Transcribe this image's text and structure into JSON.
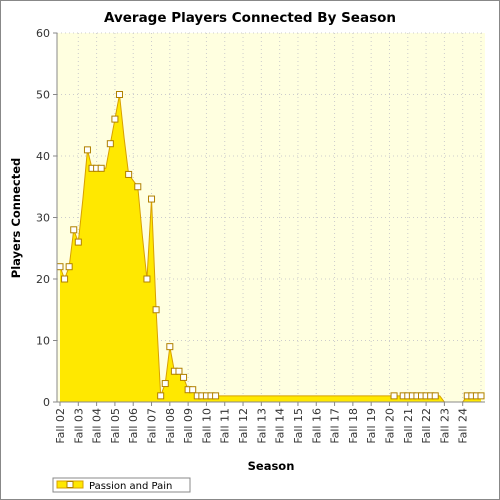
{
  "chart_data": {
    "type": "area",
    "title": "Average Players Connected By Season",
    "xlabel": "Season",
    "ylabel": "Players Connected",
    "ylim": [
      0,
      60
    ],
    "yticks": [
      0,
      10,
      20,
      30,
      40,
      50,
      60
    ],
    "x_tick_labels": [
      "Fall 02",
      "Fall 03",
      "Fall 04",
      "Fall 05",
      "Fall 06",
      "Fall 07",
      "Fall 08",
      "Fall 09",
      "Fall 10",
      "Fall 11",
      "Fall 12",
      "Fall 13",
      "Fall 14",
      "Fall 15",
      "Fall 16",
      "Fall 17",
      "Fall 18",
      "Fall 19",
      "Fall 20",
      "Fall 21",
      "Fall 22",
      "Fall 23",
      "Fall 24"
    ],
    "points_per_season": 4,
    "grid": true,
    "legend_placement": "bottom-left",
    "colors": {
      "fill": "#ffe800",
      "line": "#d8a000",
      "plot_bg": "#ffffe0",
      "marker_fill": "#ffffff"
    },
    "series": [
      {
        "name": "Passion and Pain",
        "values": [
          22,
          20,
          22,
          28,
          26,
          33,
          41,
          38,
          38,
          38,
          38,
          42,
          46,
          50,
          43,
          37,
          36,
          35,
          27,
          20,
          33,
          15,
          1,
          3,
          9,
          5,
          5,
          4,
          2,
          2,
          1,
          1,
          1,
          1,
          1,
          1,
          1,
          1,
          1,
          1,
          1,
          1,
          1,
          1,
          1,
          1,
          1,
          1,
          1,
          1,
          1,
          1,
          1,
          1,
          1,
          1,
          1,
          1,
          1,
          1,
          1,
          1,
          1,
          1,
          1,
          1,
          1,
          1,
          1,
          1,
          1,
          1,
          1,
          1,
          1,
          1,
          1,
          1,
          1,
          1,
          1,
          1,
          1,
          1,
          0,
          0,
          0,
          0,
          0,
          1,
          1,
          1,
          1
        ],
        "markers": [
          true,
          true,
          true,
          true,
          true,
          false,
          true,
          true,
          true,
          true,
          false,
          true,
          true,
          true,
          false,
          true,
          false,
          true,
          false,
          true,
          true,
          true,
          true,
          true,
          true,
          true,
          true,
          true,
          true,
          true,
          true,
          true,
          true,
          true,
          true,
          false,
          false,
          false,
          false,
          false,
          false,
          false,
          false,
          false,
          false,
          false,
          false,
          false,
          false,
          false,
          false,
          false,
          false,
          false,
          false,
          false,
          false,
          false,
          false,
          false,
          false,
          false,
          false,
          false,
          false,
          false,
          false,
          false,
          false,
          false,
          false,
          false,
          false,
          true,
          false,
          true,
          true,
          true,
          true,
          true,
          true,
          true,
          true,
          false,
          false,
          false,
          false,
          false,
          false,
          true,
          true,
          true,
          true
        ]
      }
    ]
  }
}
